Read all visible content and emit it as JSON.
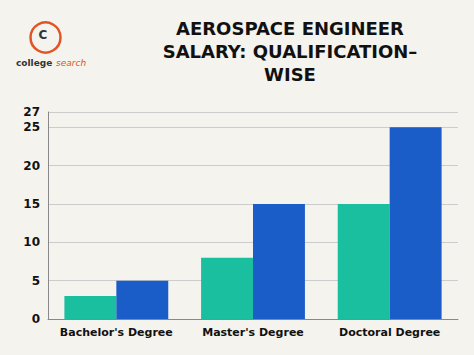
{
  "chart_data": {
    "type": "bar",
    "title": "AEROSPACE ENGINEER\nSALARY: QUALIFICATION–\nWISE",
    "annotations": [
      "C",
      "college",
      "search"
    ],
    "categories": [
      "Bachelor's Degree",
      "Master's Degree",
      "Doctoral Degree"
    ],
    "series": [
      {
        "color": "#1ABFA0",
        "values": [
          3,
          8,
          15
        ]
      },
      {
        "color": "#1A5DC8",
        "values": [
          5,
          15,
          25
        ]
      }
    ],
    "ylim": [
      0,
      27
    ],
    "yticks": [
      0,
      5,
      10,
      15,
      20,
      25
    ],
    "grid": true
  }
}
